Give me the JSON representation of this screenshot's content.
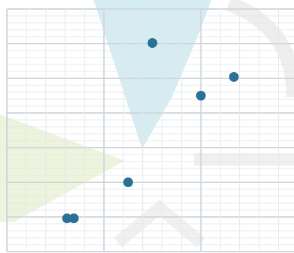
{
  "chart_data": {
    "type": "scatter",
    "x": [
      7.5,
      11.7,
      10,
      6.25,
      3.1,
      3.45
    ],
    "values": [
      30.1,
      25.2,
      22.5,
      10,
      4.8,
      4.8
    ],
    "color": "#2b7096",
    "xlim": [
      0,
      14.8
    ],
    "ylim": [
      0,
      35
    ],
    "xticks": [
      0,
      1,
      2,
      3,
      4,
      5,
      6,
      7,
      8,
      9,
      10,
      11,
      12,
      13,
      14
    ],
    "yticks": [
      0,
      1,
      2,
      3,
      4,
      5,
      6,
      7,
      8,
      9,
      10,
      11,
      12,
      13,
      14,
      15,
      16,
      17,
      18,
      19,
      20,
      21,
      22,
      23,
      24,
      25,
      26,
      27,
      28,
      29,
      30,
      31,
      32,
      33,
      34,
      35
    ],
    "grid": true
  }
}
